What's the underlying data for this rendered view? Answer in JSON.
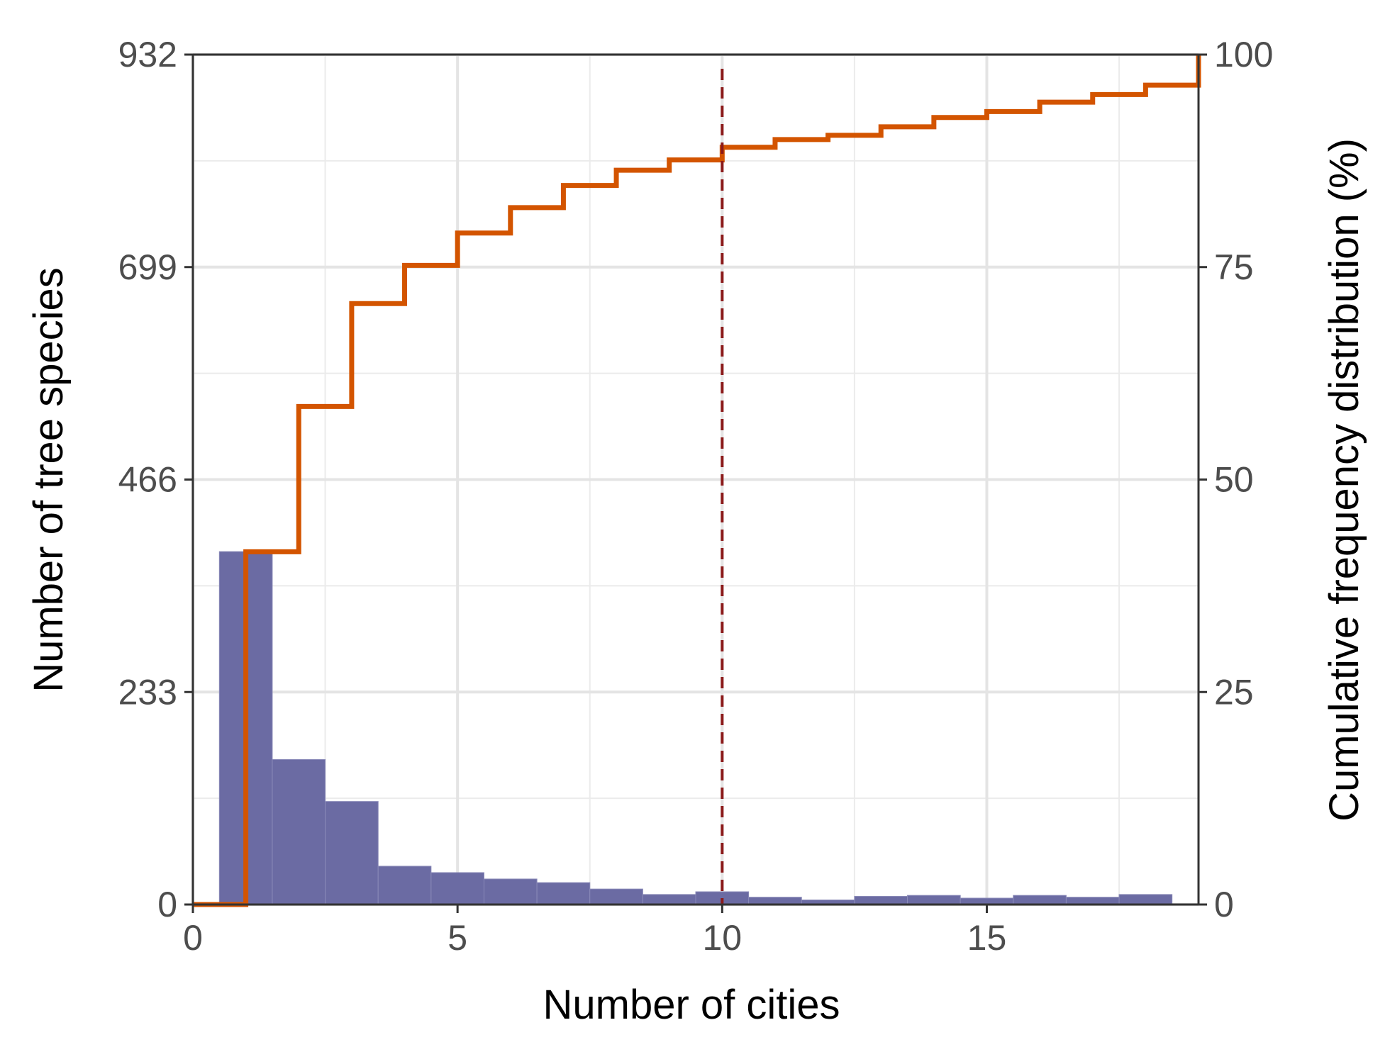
{
  "chart_data": {
    "type": "bar",
    "xlabel": "Number of cities",
    "ylabel": "Number of tree species",
    "y2label": "Cumulative frequency distribution (%)",
    "xlim": [
      0,
      19
    ],
    "ylim": [
      0,
      932
    ],
    "y2lim": [
      0,
      100
    ],
    "x_ticks": [
      0,
      5,
      10,
      15
    ],
    "y_ticks": [
      0,
      233,
      466,
      699,
      932
    ],
    "y2_ticks": [
      0,
      25,
      50,
      75,
      100
    ],
    "grid": true,
    "histogram": {
      "name": "Number of tree species",
      "color": "#6b6ba3",
      "bin_width": 1,
      "x": [
        1,
        2,
        3,
        4,
        5,
        6,
        7,
        8,
        9,
        10,
        11,
        12,
        13,
        14,
        15,
        16,
        17,
        18
      ],
      "values": [
        387,
        159,
        113,
        42,
        35,
        28,
        24,
        17,
        11,
        14,
        8,
        5,
        9,
        10,
        7,
        10,
        8,
        11
      ]
    },
    "cumulative": {
      "name": "Cumulative frequency distribution (%)",
      "color": "#d35400",
      "x": [
        0,
        1,
        2,
        3,
        4,
        5,
        6,
        7,
        8,
        9,
        10,
        11,
        12,
        13,
        14,
        15,
        16,
        17,
        18,
        19
      ],
      "values": [
        0,
        41.5,
        58.6,
        70.7,
        75.2,
        79.0,
        82.0,
        84.6,
        86.4,
        87.6,
        89.1,
        90.0,
        90.5,
        91.5,
        92.6,
        93.3,
        94.4,
        95.3,
        96.4,
        100
      ]
    },
    "reference_line": {
      "x": 10,
      "color": "#8b1a1a",
      "style": "dashed"
    }
  }
}
